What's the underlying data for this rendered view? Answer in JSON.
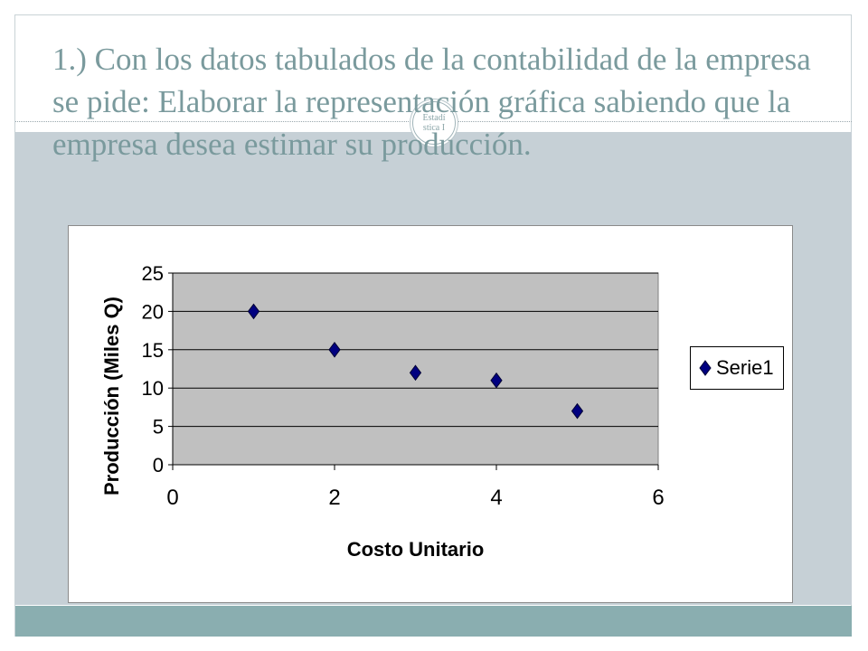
{
  "slide": {
    "title": "1.) Con los datos tabulados de la contabilidad de la empresa  se pide: Elaborar la representación gráfica sabiendo que la empresa  desea estimar su producción.",
    "badge_text": "Estadí\nstica I"
  },
  "colors": {
    "title": "#7a9a9d",
    "band": "#c6d0d6",
    "footer": "#8aaeb0",
    "plot_area": "#c0c0c0",
    "marker": "#000080"
  },
  "chart_data": {
    "type": "scatter",
    "title": "",
    "xlabel": "Costo Unitario",
    "ylabel": "Producción (Miles Q)",
    "xlim": [
      0,
      6
    ],
    "ylim": [
      0,
      25
    ],
    "xticks": [
      0,
      2,
      4,
      6
    ],
    "yticks": [
      0,
      5,
      10,
      15,
      20,
      25
    ],
    "grid": true,
    "legend_position": "right",
    "marker": "diamond",
    "series": [
      {
        "name": "Serie1",
        "x": [
          1,
          2,
          3,
          4,
          5
        ],
        "y": [
          20,
          15,
          12,
          11,
          7
        ]
      }
    ]
  }
}
